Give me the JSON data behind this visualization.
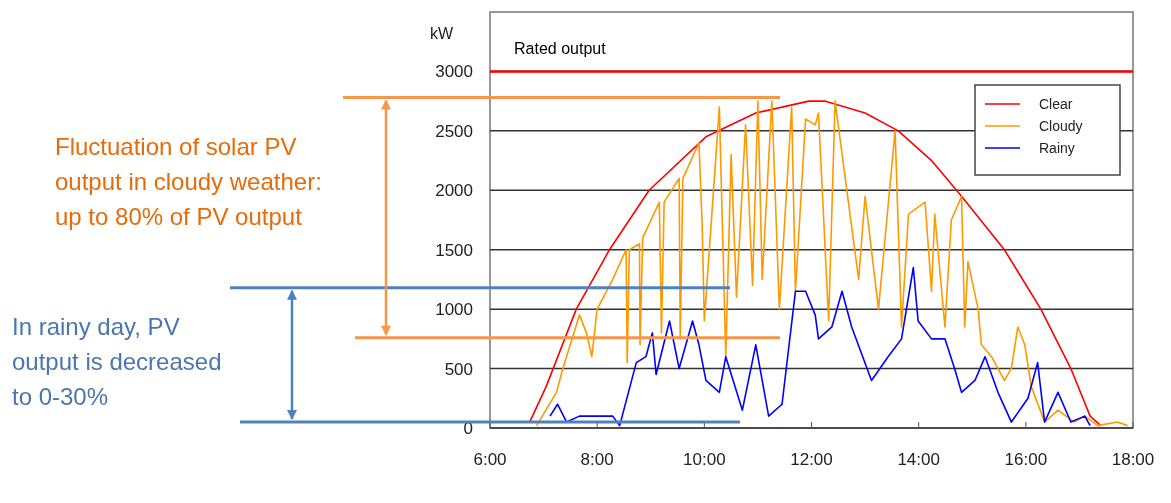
{
  "chart_data": {
    "type": "line",
    "ylabel": "kW",
    "xlim": [
      6,
      18
    ],
    "ylim": [
      0,
      3500
    ],
    "xticks": [
      {
        "value": 6,
        "label": "6:00"
      },
      {
        "value": 8,
        "label": "8:00"
      },
      {
        "value": 10,
        "label": "10:00"
      },
      {
        "value": 12,
        "label": "12:00"
      },
      {
        "value": 14,
        "label": "14:00"
      },
      {
        "value": 16,
        "label": "16:00"
      },
      {
        "value": 18,
        "label": "18:00"
      }
    ],
    "yticks": [
      0,
      500,
      1000,
      1500,
      2000,
      2500,
      3000
    ],
    "grid": "y",
    "legend": "top right",
    "series": [
      {
        "name": "Clear",
        "color": "#ff0000",
        "x": [
          6.74,
          7.05,
          7.61,
          8.23,
          8.97,
          10.03,
          10.96,
          11.95,
          12.26,
          13.0,
          13.62,
          14.24,
          14.8,
          15.6,
          16.28,
          16.84,
          17.2,
          17.4
        ],
        "values": [
          50,
          350,
          1000,
          1500,
          2000,
          2450,
          2650,
          2750,
          2750,
          2650,
          2500,
          2250,
          1950,
          1500,
          1000,
          500,
          100,
          20
        ]
      },
      {
        "name": "Cloudy",
        "color": "#ff9900",
        "x": [
          6.87,
          7.24,
          7.36,
          7.67,
          7.8,
          7.9,
          8.0,
          8.29,
          8.54,
          8.56,
          8.6,
          8.79,
          8.8,
          8.85,
          9.16,
          9.2,
          9.25,
          9.53,
          9.55,
          9.6,
          9.9,
          9.96,
          10.0,
          10.28,
          10.4,
          10.5,
          10.6,
          10.77,
          10.9,
          11.0,
          11.08,
          11.26,
          11.4,
          11.63,
          11.7,
          11.89,
          12.07,
          12.13,
          12.32,
          12.44,
          12.63,
          12.88,
          13.0,
          13.25,
          13.56,
          13.68,
          13.81,
          14.12,
          14.24,
          14.3,
          14.49,
          14.61,
          14.8,
          14.86,
          14.92,
          15.11,
          15.17,
          15.36,
          15.6,
          15.73,
          15.85,
          15.98,
          16.1,
          16.35,
          16.6,
          16.9,
          17.1,
          17.34,
          17.71,
          17.9
        ],
        "values": [
          20,
          300,
          500,
          950,
          800,
          600,
          1000,
          1250,
          1500,
          550,
          1500,
          1550,
          700,
          1600,
          1900,
          800,
          1900,
          2100,
          750,
          2100,
          2400,
          1700,
          900,
          2700,
          600,
          2300,
          1100,
          2550,
          1200,
          2750,
          1250,
          2750,
          1000,
          2700,
          1150,
          2600,
          2550,
          2650,
          900,
          2750,
          2100,
          1250,
          1950,
          1000,
          2500,
          850,
          1800,
          1900,
          1150,
          1800,
          850,
          1750,
          1950,
          850,
          1400,
          1000,
          700,
          600,
          400,
          500,
          850,
          700,
          350,
          50,
          150,
          50,
          100,
          20,
          50,
          20
        ]
      },
      {
        "name": "Rainy",
        "color": "#0000ff",
        "x": [
          7.12,
          7.26,
          7.43,
          7.67,
          8.0,
          8.29,
          8.42,
          8.73,
          8.91,
          9.03,
          9.1,
          9.35,
          9.53,
          9.78,
          9.9,
          10.03,
          10.28,
          10.4,
          10.71,
          10.96,
          11.2,
          11.45,
          11.7,
          11.89,
          12.07,
          12.13,
          12.38,
          12.57,
          12.75,
          13.12,
          13.43,
          13.68,
          13.9,
          13.99,
          14.24,
          14.49,
          14.67,
          14.8,
          15.05,
          15.24,
          15.48,
          15.73,
          16.04,
          16.22,
          16.35,
          16.6,
          16.84,
          17.1,
          17.2
        ],
        "values": [
          100,
          200,
          50,
          100,
          100,
          100,
          20,
          550,
          600,
          800,
          450,
          900,
          500,
          900,
          700,
          400,
          300,
          600,
          150,
          700,
          100,
          200,
          1150,
          1150,
          950,
          750,
          850,
          1150,
          850,
          400,
          600,
          750,
          1350,
          900,
          750,
          750,
          500,
          300,
          400,
          600,
          300,
          50,
          250,
          550,
          50,
          300,
          50,
          100,
          20
        ]
      }
    ],
    "ref_lines": [
      {
        "axis": "y",
        "value": 3000,
        "label": "Rated output",
        "color": "#ff0000"
      },
      {
        "axis": "y",
        "value": 2780,
        "color": "#f79646"
      },
      {
        "axis": "y",
        "value": 760,
        "color": "#f79646"
      },
      {
        "axis": "y",
        "value": 1180,
        "color": "#4f81bd"
      },
      {
        "axis": "y",
        "value": 50,
        "color": "#4f81bd"
      }
    ],
    "annotations": [
      "Fluctuation of solar PV output in cloudy weather: up to 80% of PV output",
      "In rainy day, PV output is decreased to 0-30%"
    ]
  }
}
